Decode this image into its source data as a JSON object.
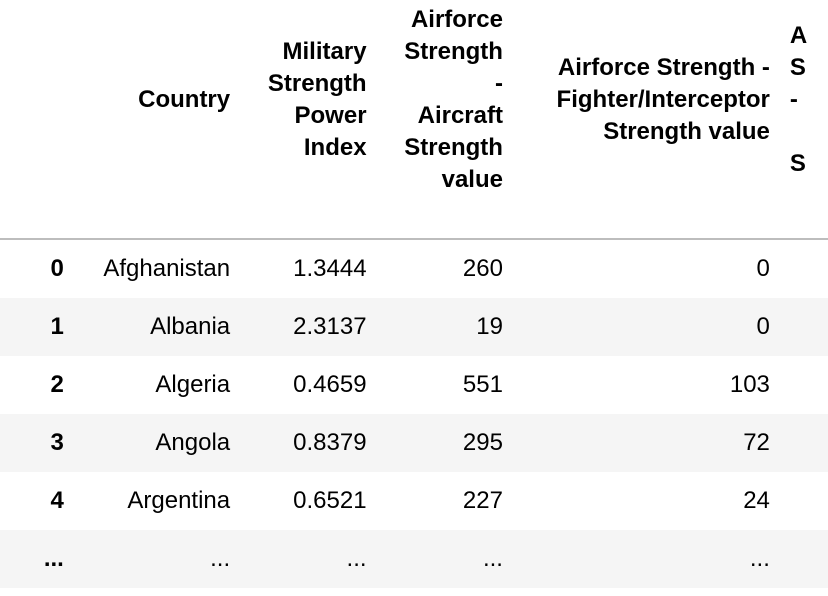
{
  "columns": [
    {
      "lines": [
        ""
      ]
    },
    {
      "lines": [
        "Country"
      ]
    },
    {
      "lines": [
        "Military",
        "Strength",
        "Power",
        "Index"
      ]
    },
    {
      "lines": [
        "Airforce",
        "Strength",
        "-",
        "Aircraft",
        "Strength",
        "value"
      ]
    },
    {
      "lines": [
        "Airforce Strength -",
        "Fighter/Interceptor",
        "Strength value"
      ]
    },
    {
      "lines": [
        "A",
        "S",
        "-",
        "",
        "S"
      ]
    }
  ],
  "rows": [
    {
      "index": "0",
      "cells": [
        "Afghanistan",
        "1.3444",
        "260",
        "0"
      ]
    },
    {
      "index": "1",
      "cells": [
        "Albania",
        "2.3137",
        "19",
        "0"
      ]
    },
    {
      "index": "2",
      "cells": [
        "Algeria",
        "0.4659",
        "551",
        "103"
      ]
    },
    {
      "index": "3",
      "cells": [
        "Angola",
        "0.8379",
        "295",
        "72"
      ]
    },
    {
      "index": "4",
      "cells": [
        "Argentina",
        "0.6521",
        "227",
        "24"
      ]
    },
    {
      "index": "...",
      "cells": [
        "...",
        "...",
        "...",
        "..."
      ]
    }
  ]
}
